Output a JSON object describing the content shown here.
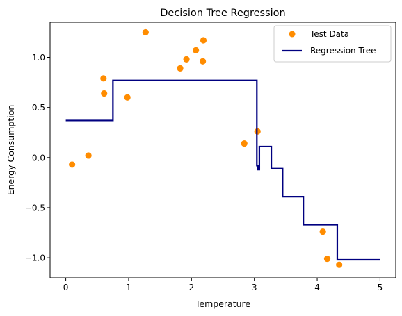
{
  "chart_data": {
    "type": "scatter+line",
    "title": "Decision Tree Regression",
    "xlabel": "Temperature",
    "ylabel": "Energy Consumption",
    "xlim": [
      -0.25,
      5.25
    ],
    "ylim": [
      -1.2,
      1.35
    ],
    "xticks": [
      0,
      1,
      2,
      3,
      4,
      5
    ],
    "yticks": [
      -1.0,
      -0.5,
      0.0,
      0.5,
      1.0
    ],
    "ytick_labels": [
      "−1.0",
      "−0.5",
      "0.0",
      "0.5",
      "1.0"
    ],
    "grid": false,
    "legend_position": "top-right",
    "series": [
      {
        "name": "Test Data",
        "kind": "scatter",
        "color": "#ff8c00",
        "points": [
          [
            0.1,
            -0.07
          ],
          [
            0.36,
            0.02
          ],
          [
            0.6,
            0.79
          ],
          [
            0.61,
            0.64
          ],
          [
            0.98,
            0.6
          ],
          [
            1.27,
            1.25
          ],
          [
            1.82,
            0.89
          ],
          [
            1.92,
            0.98
          ],
          [
            2.07,
            1.07
          ],
          [
            2.18,
            0.96
          ],
          [
            2.19,
            1.17
          ],
          [
            2.84,
            0.14
          ],
          [
            3.05,
            0.26
          ],
          [
            4.09,
            -0.74
          ],
          [
            4.16,
            -1.01
          ],
          [
            4.35,
            -1.07
          ]
        ]
      },
      {
        "name": "Regression Tree",
        "kind": "line",
        "color": "#000080",
        "points": [
          [
            0.0,
            0.37
          ],
          [
            0.75,
            0.37
          ],
          [
            0.75,
            0.77
          ],
          [
            3.04,
            0.77
          ],
          [
            3.04,
            -0.08
          ],
          [
            3.06,
            -0.08
          ],
          [
            3.06,
            -0.12
          ],
          [
            3.08,
            -0.12
          ],
          [
            3.08,
            0.11
          ],
          [
            3.27,
            0.11
          ],
          [
            3.27,
            -0.11
          ],
          [
            3.45,
            -0.11
          ],
          [
            3.45,
            -0.39
          ],
          [
            3.78,
            -0.39
          ],
          [
            3.78,
            -0.67
          ],
          [
            4.32,
            -0.67
          ],
          [
            4.32,
            -1.02
          ],
          [
            5.0,
            -1.02
          ]
        ]
      }
    ]
  }
}
